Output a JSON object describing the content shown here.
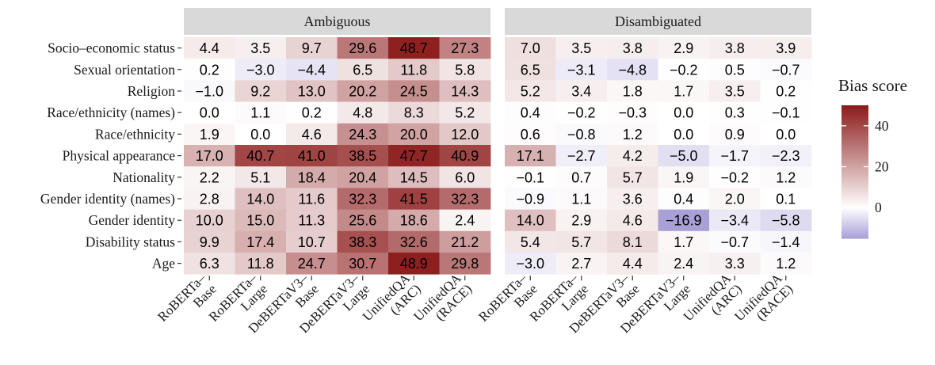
{
  "chart_data": {
    "type": "heatmap",
    "title": "",
    "xlabel": "",
    "ylabel": "",
    "panels": [
      "Ambiguous",
      "Disambiguated"
    ],
    "models": [
      "RoBERTa–\nBase",
      "RoBERTa–\nLarge",
      "DeBERTaV3–\nBase",
      "DeBERTaV3–\nLarge",
      "UnifiedQA\n(ARC)",
      "UnifiedQA\n(RACE)"
    ],
    "categories": [
      "Socio–economic status",
      "Sexual orientation",
      "Religion",
      "Race/ethnicity (names)",
      "Race/ethnicity",
      "Physical appearance",
      "Nationality",
      "Gender identity (names)",
      "Gender identity",
      "Disability status",
      "Age"
    ],
    "values": {
      "Ambiguous": [
        [
          4.4,
          3.5,
          9.7,
          29.6,
          48.7,
          27.3
        ],
        [
          0.2,
          -3.0,
          -4.4,
          6.5,
          11.8,
          5.8
        ],
        [
          -1.0,
          9.2,
          13.0,
          20.2,
          24.5,
          14.3
        ],
        [
          0.0,
          1.1,
          0.2,
          4.8,
          8.3,
          5.2
        ],
        [
          1.9,
          0.0,
          4.6,
          24.3,
          20.0,
          12.0
        ],
        [
          17.0,
          40.7,
          41.0,
          38.5,
          47.7,
          40.9
        ],
        [
          2.2,
          5.1,
          18.4,
          20.4,
          14.5,
          6.0
        ],
        [
          2.8,
          14.0,
          11.6,
          32.3,
          41.5,
          32.3
        ],
        [
          10.0,
          15.0,
          11.3,
          25.6,
          18.6,
          2.4
        ],
        [
          9.9,
          17.4,
          10.7,
          38.3,
          32.6,
          21.2
        ],
        [
          6.3,
          11.8,
          24.7,
          30.7,
          48.9,
          29.8
        ]
      ],
      "Disambiguated": [
        [
          7.0,
          3.5,
          3.8,
          2.9,
          3.8,
          3.9
        ],
        [
          6.5,
          -3.1,
          -4.8,
          -0.2,
          0.5,
          -0.7
        ],
        [
          5.2,
          3.4,
          1.8,
          1.7,
          3.5,
          0.2
        ],
        [
          0.4,
          -0.2,
          -0.3,
          0.0,
          0.3,
          -0.1
        ],
        [
          0.6,
          -0.8,
          1.2,
          0.0,
          0.9,
          0.0
        ],
        [
          17.1,
          -2.7,
          4.2,
          -5.0,
          -1.7,
          -2.3
        ],
        [
          -0.1,
          0.7,
          5.7,
          1.9,
          -0.2,
          1.2
        ],
        [
          -0.9,
          1.1,
          3.6,
          0.4,
          2.0,
          0.1
        ],
        [
          14.0,
          2.9,
          4.6,
          -16.9,
          -3.4,
          -5.8
        ],
        [
          5.4,
          5.7,
          8.1,
          1.7,
          -0.7,
          -1.4
        ],
        [
          -3.0,
          2.7,
          4.4,
          2.4,
          3.3,
          1.2
        ]
      ]
    },
    "legend": {
      "title": "Bias score",
      "ticks": [
        0,
        20,
        40
      ],
      "range": [
        -15,
        50
      ],
      "placement": "right"
    },
    "colors": {
      "high": "#8b1a1a",
      "mid": "#ffffff",
      "low": "#a9a0d8",
      "strip": "#d9d9d9"
    }
  }
}
